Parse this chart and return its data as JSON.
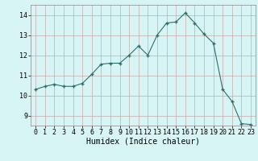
{
  "x": [
    0,
    1,
    2,
    3,
    4,
    5,
    6,
    7,
    8,
    9,
    10,
    11,
    12,
    13,
    14,
    15,
    16,
    17,
    18,
    19,
    20,
    21,
    22,
    23
  ],
  "y": [
    10.3,
    10.45,
    10.55,
    10.45,
    10.45,
    10.6,
    11.05,
    11.55,
    11.6,
    11.6,
    12.0,
    12.45,
    12.0,
    13.0,
    13.6,
    13.65,
    14.1,
    13.6,
    13.05,
    12.6,
    10.3,
    9.7,
    8.6,
    8.55
  ],
  "line_color": "#2d6e6e",
  "marker": "+",
  "marker_size": 3,
  "bg_color": "#d8f5f5",
  "grid_color_v": "#c8a8a8",
  "grid_color_h": "#c8a8a8",
  "xlabel": "Humidex (Indice chaleur)",
  "xlabel_fontsize": 7,
  "tick_fontsize": 6,
  "ylim": [
    8.5,
    14.5
  ],
  "xlim": [
    -0.5,
    23.5
  ],
  "yticks": [
    9,
    10,
    11,
    12,
    13,
    14
  ],
  "xticks": [
    0,
    1,
    2,
    3,
    4,
    5,
    6,
    7,
    8,
    9,
    10,
    11,
    12,
    13,
    14,
    15,
    16,
    17,
    18,
    19,
    20,
    21,
    22,
    23
  ]
}
